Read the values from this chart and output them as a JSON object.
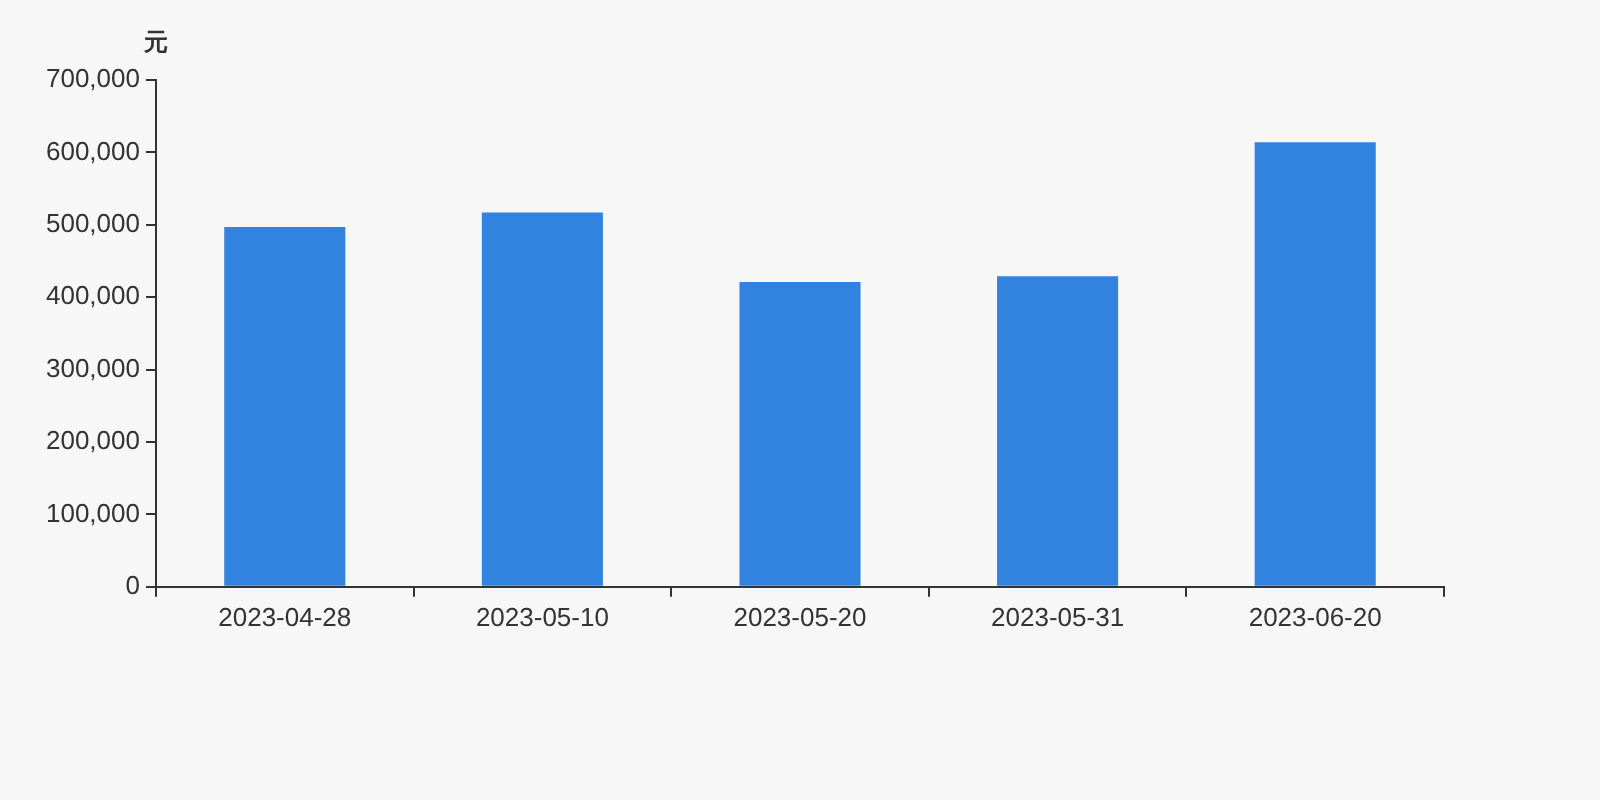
{
  "chart_data": {
    "type": "bar",
    "ylabel": "元",
    "categories": [
      "2023-04-28",
      "2023-05-10",
      "2023-05-20",
      "2023-05-31",
      "2023-06-20"
    ],
    "values": [
      497000,
      517000,
      421000,
      429000,
      614000
    ],
    "color": "#3282e0",
    "ylim": [
      0,
      700000
    ],
    "yticks": [
      0,
      {
        "value": 100000,
        "label": "100,000"
      },
      {
        "value": 200000,
        "label": "200,000"
      },
      {
        "value": 300000,
        "label": "300,000"
      },
      {
        "value": 400000,
        "label": "400,000"
      },
      {
        "value": 500000,
        "label": "500,000"
      },
      {
        "value": 600000,
        "label": "600,000"
      },
      {
        "value": 700000,
        "label": "700,000"
      }
    ],
    "grid": false,
    "legend": false
  }
}
